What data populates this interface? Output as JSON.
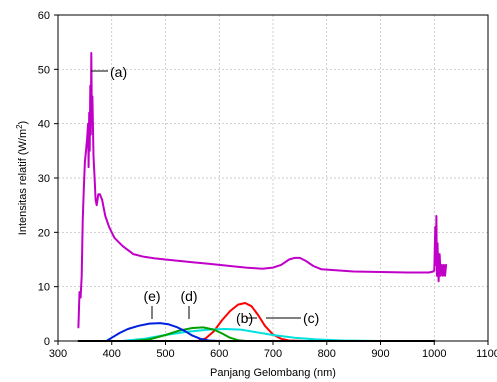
{
  "chart_data": {
    "type": "line",
    "xlabel": "Panjang Gelombang (nm)",
    "ylabel": "Intensitas relatif (W/m",
    "ylabel_sup": "2",
    "ylabel_close": ")",
    "xlim": [
      300,
      1100
    ],
    "ylim": [
      0,
      60
    ],
    "x_ticks": [
      "300",
      "400",
      "500",
      "600",
      "700",
      "800",
      "900",
      "1000",
      "1100"
    ],
    "y_ticks": [
      "0",
      "10",
      "20",
      "30",
      "40",
      "50",
      "60"
    ],
    "grid": true,
    "series": [
      {
        "name": "(a)",
        "color": "#c000c8",
        "points": [
          [
            338,
            2.5
          ],
          [
            340,
            9
          ],
          [
            342,
            8
          ],
          [
            344,
            12
          ],
          [
            346,
            22
          ],
          [
            348,
            28
          ],
          [
            350,
            33
          ],
          [
            352,
            35
          ],
          [
            354,
            37
          ],
          [
            356,
            40
          ],
          [
            357,
            32
          ],
          [
            358,
            42
          ],
          [
            359,
            35
          ],
          [
            360,
            47
          ],
          [
            361,
            38
          ],
          [
            362,
            53
          ],
          [
            363,
            40
          ],
          [
            364,
            45
          ],
          [
            366,
            34
          ],
          [
            368,
            30
          ],
          [
            370,
            26
          ],
          [
            372,
            25
          ],
          [
            375,
            27
          ],
          [
            378,
            27
          ],
          [
            382,
            26
          ],
          [
            388,
            23
          ],
          [
            395,
            21
          ],
          [
            405,
            19
          ],
          [
            420,
            17.5
          ],
          [
            440,
            16
          ],
          [
            460,
            15.5
          ],
          [
            480,
            15.2
          ],
          [
            500,
            15
          ],
          [
            520,
            14.8
          ],
          [
            550,
            14.5
          ],
          [
            580,
            14.2
          ],
          [
            600,
            14
          ],
          [
            620,
            13.8
          ],
          [
            650,
            13.5
          ],
          [
            680,
            13.3
          ],
          [
            700,
            13.5
          ],
          [
            715,
            14
          ],
          [
            730,
            15
          ],
          [
            740,
            15.3
          ],
          [
            750,
            15.3
          ],
          [
            760,
            14.8
          ],
          [
            775,
            13.8
          ],
          [
            790,
            13.2
          ],
          [
            820,
            13
          ],
          [
            850,
            12.8
          ],
          [
            900,
            12.7
          ],
          [
            950,
            12.6
          ],
          [
            990,
            12.6
          ],
          [
            998,
            12.8
          ],
          [
            1000,
            13
          ],
          [
            1002,
            21
          ],
          [
            1003,
            14
          ],
          [
            1004,
            23
          ],
          [
            1005,
            12
          ],
          [
            1006,
            18
          ],
          [
            1008,
            11
          ],
          [
            1010,
            16
          ],
          [
            1012,
            12
          ],
          [
            1014,
            14
          ],
          [
            1016,
            12
          ],
          [
            1018,
            14
          ],
          [
            1020,
            12
          ],
          [
            1022,
            14
          ]
        ]
      },
      {
        "name": "(b)",
        "color": "#ff0000",
        "points": [
          [
            340,
            0
          ],
          [
            560,
            0
          ],
          [
            575,
            0.5
          ],
          [
            590,
            1.8
          ],
          [
            605,
            3.8
          ],
          [
            620,
            5.5
          ],
          [
            635,
            6.7
          ],
          [
            648,
            7
          ],
          [
            660,
            6.4
          ],
          [
            672,
            4.8
          ],
          [
            685,
            2.8
          ],
          [
            700,
            1.2
          ],
          [
            715,
            0.4
          ],
          [
            730,
            0.1
          ],
          [
            760,
            0
          ],
          [
            1000,
            0
          ]
        ]
      },
      {
        "name": "(c)",
        "color": "#00e0e0",
        "points": [
          [
            340,
            0
          ],
          [
            420,
            0
          ],
          [
            460,
            0.4
          ],
          [
            500,
            1.1
          ],
          [
            540,
            1.7
          ],
          [
            580,
            2.1
          ],
          [
            610,
            2.2
          ],
          [
            640,
            2.1
          ],
          [
            670,
            1.6
          ],
          [
            700,
            1.1
          ],
          [
            740,
            0.6
          ],
          [
            780,
            0.3
          ],
          [
            830,
            0.1
          ],
          [
            900,
            0
          ],
          [
            1000,
            0
          ]
        ]
      },
      {
        "name": "(d)",
        "color": "#00a000",
        "points": [
          [
            340,
            0
          ],
          [
            440,
            0
          ],
          [
            470,
            0.3
          ],
          [
            500,
            1.1
          ],
          [
            525,
            1.9
          ],
          [
            550,
            2.4
          ],
          [
            570,
            2.5
          ],
          [
            590,
            2.1
          ],
          [
            605,
            1.4
          ],
          [
            620,
            0.6
          ],
          [
            635,
            0.15
          ],
          [
            650,
            0
          ],
          [
            1000,
            0
          ]
        ]
      },
      {
        "name": "(e)",
        "color": "#0020e0",
        "points": [
          [
            340,
            0
          ],
          [
            390,
            0
          ],
          [
            400,
            0.6
          ],
          [
            415,
            1.5
          ],
          [
            430,
            2.2
          ],
          [
            450,
            2.8
          ],
          [
            470,
            3.2
          ],
          [
            490,
            3.3
          ],
          [
            505,
            3.1
          ],
          [
            520,
            2.6
          ],
          [
            535,
            1.9
          ],
          [
            550,
            1.0
          ],
          [
            565,
            0.4
          ],
          [
            580,
            0.1
          ],
          [
            600,
            0
          ],
          [
            1000,
            0
          ]
        ]
      },
      {
        "name": "baseline",
        "color": "#000000",
        "points": [
          [
            338,
            0
          ],
          [
            1000,
            0
          ]
        ]
      }
    ],
    "annotations": [
      {
        "label": "(a)",
        "text": "(a)"
      },
      {
        "label": "(b)",
        "text": "(b)"
      },
      {
        "label": "(c)",
        "text": "(c)"
      },
      {
        "label": "(d)",
        "text": "(d)"
      },
      {
        "label": "(e)",
        "text": "(e)"
      }
    ]
  }
}
